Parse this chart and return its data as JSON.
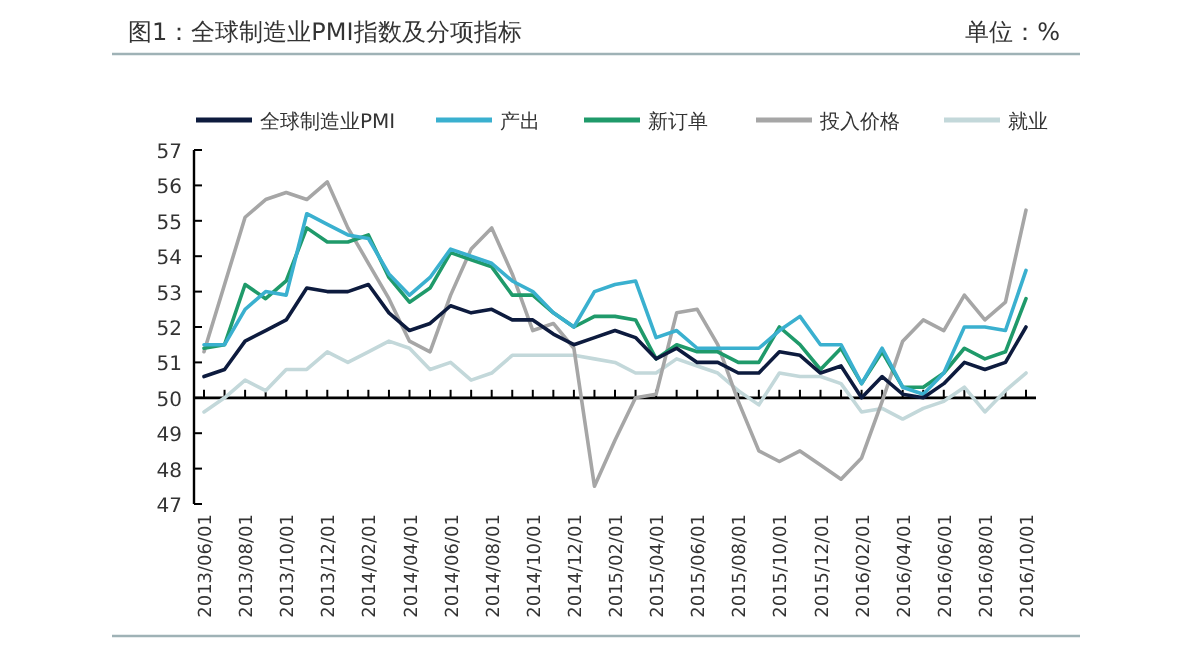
{
  "chart_data": {
    "type": "line",
    "title": "图1：全球制造业PMI指数及分项指标",
    "ylabel": "单位：%",
    "categories": [
      "2013/06/01",
      null,
      "2013/08/01",
      null,
      "2013/10/01",
      null,
      "2013/12/01",
      null,
      "2014/02/01",
      null,
      "2014/04/01",
      null,
      "2014/06/01",
      null,
      "2014/08/01",
      null,
      "2014/10/01",
      null,
      "2014/12/01",
      null,
      "2015/02/01",
      null,
      "2015/04/01",
      null,
      "2015/06/01",
      null,
      "2015/08/01",
      null,
      "2015/10/01",
      null,
      "2015/12/01",
      null,
      "2016/02/01",
      null,
      "2016/04/01",
      null,
      "2016/06/01",
      null,
      "2016/08/01",
      null,
      "2016/10/01"
    ],
    "series": [
      {
        "name": "全球制造业PMI",
        "color": "#0d1b3e",
        "values": [
          50.6,
          50.8,
          51.6,
          51.9,
          52.2,
          53.1,
          53.0,
          53.0,
          53.2,
          52.4,
          51.9,
          52.1,
          52.6,
          52.4,
          52.5,
          52.2,
          52.2,
          51.8,
          51.5,
          51.7,
          51.9,
          51.7,
          51.1,
          51.4,
          51.0,
          51.0,
          50.7,
          50.7,
          51.3,
          51.2,
          50.7,
          50.9,
          50.0,
          50.6,
          50.1,
          50.0,
          50.4,
          51.0,
          50.8,
          51.0,
          52.0
        ]
      },
      {
        "name": "产出",
        "color": "#3ab0cf",
        "values": [
          51.5,
          51.5,
          52.5,
          53.0,
          52.9,
          55.2,
          54.9,
          54.6,
          54.5,
          53.5,
          52.9,
          53.4,
          54.2,
          54.0,
          53.8,
          53.3,
          53.0,
          52.4,
          52.0,
          53.0,
          53.2,
          53.3,
          51.7,
          51.9,
          51.4,
          51.4,
          51.4,
          51.4,
          51.9,
          52.3,
          51.5,
          51.5,
          50.4,
          51.4,
          50.3,
          50.1,
          50.7,
          52.0,
          52.0,
          51.9,
          53.6
        ]
      },
      {
        "name": "新订单",
        "color": "#1f9a6a",
        "values": [
          51.4,
          51.5,
          53.2,
          52.8,
          53.3,
          54.8,
          54.4,
          54.4,
          54.6,
          53.4,
          52.7,
          53.1,
          54.1,
          53.9,
          53.7,
          52.9,
          52.9,
          52.4,
          52.0,
          52.3,
          52.3,
          52.2,
          51.1,
          51.5,
          51.3,
          51.3,
          51.0,
          51.0,
          52.0,
          51.5,
          50.8,
          51.4,
          50.4,
          51.3,
          50.3,
          50.3,
          50.7,
          51.4,
          51.1,
          51.3,
          52.8
        ]
      },
      {
        "name": "投入价格",
        "color": "#a6a6a6",
        "values": [
          51.3,
          53.2,
          55.1,
          55.6,
          55.8,
          55.6,
          56.1,
          54.8,
          53.8,
          52.8,
          51.6,
          51.3,
          52.9,
          54.2,
          54.8,
          53.5,
          51.9,
          52.1,
          51.4,
          47.5,
          48.8,
          50.0,
          50.1,
          52.4,
          52.5,
          51.5,
          49.9,
          48.5,
          48.2,
          48.5,
          48.1,
          47.7,
          48.3,
          49.9,
          51.6,
          52.2,
          51.9,
          52.9,
          52.2,
          52.7,
          55.3
        ]
      },
      {
        "name": "就业",
        "color": "#c3d8da",
        "values": [
          49.6,
          50.0,
          50.5,
          50.2,
          50.8,
          50.8,
          51.3,
          51.0,
          51.3,
          51.6,
          51.4,
          50.8,
          51.0,
          50.5,
          50.7,
          51.2,
          51.2,
          51.2,
          51.2,
          51.1,
          51.0,
          50.7,
          50.7,
          51.1,
          50.9,
          50.7,
          50.2,
          49.8,
          50.7,
          50.6,
          50.6,
          50.4,
          49.6,
          49.7,
          49.4,
          49.7,
          49.9,
          50.3,
          49.6,
          50.2,
          50.7
        ]
      }
    ],
    "ylim": [
      47,
      57
    ],
    "yticks": [
      47,
      48,
      49,
      50,
      51,
      52,
      53,
      54,
      55,
      56,
      57
    ],
    "ref_lines": [
      {
        "axis": "y",
        "value": 50,
        "color": "#000000"
      }
    ],
    "grid": false,
    "legend": "top",
    "marker": "none",
    "line_style": "solid"
  }
}
